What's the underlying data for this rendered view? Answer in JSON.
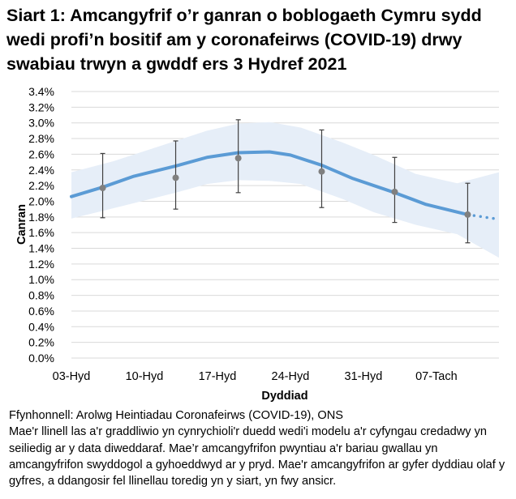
{
  "title": "Siart 1: Amcangyfrif o’r ganran o boblogaeth Cymru sydd wedi profi’n bositif am y coronafeirws (COVID-19) drwy swabiau trwyn a gwddf ers 3 Hydref 2021",
  "footnote": {
    "source": "Ffynhonnell: Arolwg Heintiadau Coronafeirws (COVID-19), ONS",
    "note": "Mae'r llinell las a'r graddliwio yn cynrychioli'r duedd wedi'i modelu a'r cyfyngau credadwy yn seiliedig ar y data diweddaraf. Mae’r amcangyfrifon pwyntiau a'r bariau gwallau yn amcangyfrifon swyddogol a gyhoeddwyd ar y pryd. Mae'r amcangyfrifon ar gyfer dyddiau olaf y gyfres, a ddangosir fel llinellau toredig yn y siart, yn fwy ansicr."
  },
  "chart_data": {
    "type": "line",
    "xlabel": "Dyddiad",
    "ylabel": "Canran",
    "xlim": [
      "2021-10-03",
      "2021-11-13"
    ],
    "ylim": [
      0,
      3.4
    ],
    "yticks": [
      "0.0%",
      "0.2%",
      "0.4%",
      "0.6%",
      "0.8%",
      "1.0%",
      "1.2%",
      "1.4%",
      "1.6%",
      "1.8%",
      "2.0%",
      "2.2%",
      "2.4%",
      "2.6%",
      "2.8%",
      "3.0%",
      "3.2%",
      "3.4%"
    ],
    "xticks": [
      {
        "date": "2021-10-03",
        "label": "03-Hyd"
      },
      {
        "date": "2021-10-10",
        "label": "10-Hyd"
      },
      {
        "date": "2021-10-17",
        "label": "17-Hyd"
      },
      {
        "date": "2021-10-24",
        "label": "24-Hyd"
      },
      {
        "date": "2021-10-31",
        "label": "31-Hyd"
      },
      {
        "date": "2021-11-07",
        "label": "07-Tach"
      }
    ],
    "grid": true,
    "colors": {
      "trend": "#5B9BD5",
      "band": "#E6EEF8",
      "points": "#808080",
      "errorbars": "#404040",
      "grid": "#D9D9D9"
    },
    "trend": [
      [
        "2021-10-03",
        2.06
      ],
      [
        "2021-10-06",
        2.18
      ],
      [
        "2021-10-09",
        2.32
      ],
      [
        "2021-10-13",
        2.45
      ],
      [
        "2021-10-16",
        2.56
      ],
      [
        "2021-10-19",
        2.62
      ],
      [
        "2021-10-22",
        2.63
      ],
      [
        "2021-10-24",
        2.59
      ],
      [
        "2021-10-27",
        2.46
      ],
      [
        "2021-10-30",
        2.29
      ],
      [
        "2021-11-03",
        2.11
      ],
      [
        "2021-11-06",
        1.96
      ],
      [
        "2021-11-10",
        1.83
      ]
    ],
    "trend_provisional": [
      [
        "2021-11-10",
        1.83
      ],
      [
        "2021-11-13",
        1.77
      ]
    ],
    "credible_interval": [
      [
        "2021-10-03",
        1.78,
        2.37
      ],
      [
        "2021-10-07",
        1.91,
        2.51
      ],
      [
        "2021-10-13",
        2.11,
        2.77
      ],
      [
        "2021-10-16",
        2.22,
        2.9
      ],
      [
        "2021-10-19",
        2.27,
        2.99
      ],
      [
        "2021-10-22",
        2.26,
        3.01
      ],
      [
        "2021-10-25",
        2.22,
        2.94
      ],
      [
        "2021-10-29",
        2.03,
        2.75
      ],
      [
        "2021-11-01",
        1.86,
        2.59
      ],
      [
        "2021-11-05",
        1.7,
        2.35
      ],
      [
        "2021-11-09",
        1.58,
        2.23
      ],
      [
        "2021-11-13",
        1.28,
        2.37
      ]
    ],
    "official_estimates": [
      {
        "date": "2021-10-06",
        "value": 2.17,
        "lower": 1.79,
        "upper": 2.61
      },
      {
        "date": "2021-10-13",
        "value": 2.3,
        "lower": 1.9,
        "upper": 2.77
      },
      {
        "date": "2021-10-19",
        "value": 2.55,
        "lower": 2.11,
        "upper": 3.04
      },
      {
        "date": "2021-10-27",
        "value": 2.38,
        "lower": 1.92,
        "upper": 2.91
      },
      {
        "date": "2021-11-03",
        "value": 2.12,
        "lower": 1.73,
        "upper": 2.56
      },
      {
        "date": "2021-11-10",
        "value": 1.83,
        "lower": 1.47,
        "upper": 2.23
      }
    ]
  }
}
